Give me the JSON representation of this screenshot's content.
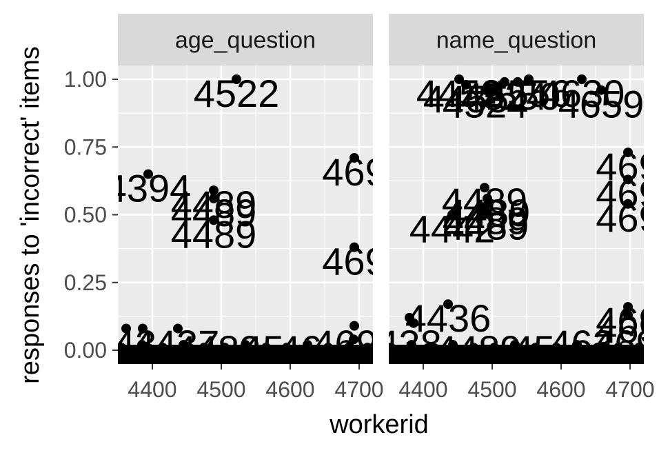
{
  "chart_data": {
    "type": "scatter",
    "xlabel": "workerid",
    "ylabel": "responses to 'incorrect' items",
    "xlim": [
      4350,
      4720
    ],
    "ylim": [
      0,
      1.0
    ],
    "x_ticks": [
      "4400",
      "4500",
      "4600",
      "4700"
    ],
    "y_ticks": [
      "0.00",
      "0.25",
      "0.50",
      "0.75",
      "1.00"
    ],
    "grid": true,
    "panels": [
      {
        "facet": "age_question",
        "points": [
          {
            "x": 4522,
            "y": 1.0,
            "label": "4522"
          },
          {
            "x": 4394,
            "y": 0.65,
            "label": "4394"
          },
          {
            "x": 4489,
            "y": 0.59,
            "label": "4489"
          },
          {
            "x": 4489,
            "y": 0.56,
            "label": "4489"
          },
          {
            "x": 4489,
            "y": 0.48,
            "label": "4489"
          },
          {
            "x": 4693,
            "y": 0.71,
            "label": "469"
          },
          {
            "x": 4693,
            "y": 0.38,
            "label": "469"
          },
          {
            "x": 4362,
            "y": 0.08,
            "label": ""
          },
          {
            "x": 4386,
            "y": 0.08,
            "label": ""
          },
          {
            "x": 4437,
            "y": 0.08,
            "label": ""
          },
          {
            "x": 4693,
            "y": 0.09,
            "label": ""
          },
          {
            "x": 4692,
            "y": 0.04,
            "label": ""
          },
          {
            "x": 4355,
            "y": 0.01,
            "label": ""
          },
          {
            "x": 4370,
            "y": 0.0,
            "label": ""
          },
          {
            "x": 4385,
            "y": 0.02,
            "label": ""
          },
          {
            "x": 4400,
            "y": 0.0,
            "label": ""
          },
          {
            "x": 4415,
            "y": 0.01,
            "label": ""
          },
          {
            "x": 4430,
            "y": 0.0,
            "label": ""
          },
          {
            "x": 4445,
            "y": 0.02,
            "label": ""
          },
          {
            "x": 4460,
            "y": 0.0,
            "label": ""
          },
          {
            "x": 4475,
            "y": 0.01,
            "label": ""
          },
          {
            "x": 4490,
            "y": 0.0,
            "label": ""
          },
          {
            "x": 4505,
            "y": 0.01,
            "label": ""
          },
          {
            "x": 4520,
            "y": 0.0,
            "label": ""
          },
          {
            "x": 4535,
            "y": 0.02,
            "label": ""
          },
          {
            "x": 4550,
            "y": 0.0,
            "label": ""
          },
          {
            "x": 4565,
            "y": 0.01,
            "label": ""
          },
          {
            "x": 4580,
            "y": 0.0,
            "label": ""
          },
          {
            "x": 4595,
            "y": 0.01,
            "label": ""
          },
          {
            "x": 4610,
            "y": 0.0,
            "label": ""
          },
          {
            "x": 4625,
            "y": 0.02,
            "label": ""
          },
          {
            "x": 4640,
            "y": 0.0,
            "label": ""
          },
          {
            "x": 4655,
            "y": 0.01,
            "label": ""
          },
          {
            "x": 4670,
            "y": 0.0,
            "label": ""
          },
          {
            "x": 4685,
            "y": 0.01,
            "label": ""
          },
          {
            "x": 4700,
            "y": 0.0,
            "label": ""
          },
          {
            "x": 4712,
            "y": 0.01,
            "label": ""
          }
        ],
        "clutter_labels": [
          {
            "x": 4375,
            "y": 0.02,
            "label": "43"
          },
          {
            "x": 4435,
            "y": 0.02,
            "label": "4437"
          },
          {
            "x": 4495,
            "y": 0.0,
            "label": "4489"
          },
          {
            "x": 4560,
            "y": 0.0,
            "label": "45"
          },
          {
            "x": 4615,
            "y": 0.0,
            "label": "46"
          },
          {
            "x": 4680,
            "y": 0.02,
            "label": "469"
          }
        ]
      },
      {
        "facet": "name_question",
        "points": [
          {
            "x": 4452,
            "y": 1.0,
            "label": "4452"
          },
          {
            "x": 4462,
            "y": 0.98,
            "label": "4455"
          },
          {
            "x": 4490,
            "y": 0.96,
            "label": "4524"
          },
          {
            "x": 4518,
            "y": 0.99,
            "label": "4524"
          },
          {
            "x": 4537,
            "y": 0.99,
            "label": "4550"
          },
          {
            "x": 4553,
            "y": 1.0,
            "label": "4556"
          },
          {
            "x": 4630,
            "y": 1.0,
            "label": "4630"
          },
          {
            "x": 4658,
            "y": 0.96,
            "label": "4659"
          },
          {
            "x": 4697,
            "y": 0.73,
            "label": "469"
          },
          {
            "x": 4697,
            "y": 0.63,
            "label": "469"
          },
          {
            "x": 4697,
            "y": 0.54,
            "label": "469"
          },
          {
            "x": 4489,
            "y": 0.6,
            "label": "4489"
          },
          {
            "x": 4493,
            "y": 0.56,
            "label": "4489"
          },
          {
            "x": 4490,
            "y": 0.53,
            "label": "4489"
          },
          {
            "x": 4491,
            "y": 0.51,
            "label": "4489"
          },
          {
            "x": 4442,
            "y": 0.5,
            "label": "4442"
          },
          {
            "x": 4436,
            "y": 0.17,
            "label": "4436"
          },
          {
            "x": 4697,
            "y": 0.16,
            "label": "469"
          },
          {
            "x": 4697,
            "y": 0.13,
            "label": "469"
          },
          {
            "x": 4380,
            "y": 0.12,
            "label": ""
          },
          {
            "x": 4386,
            "y": 0.1,
            "label": ""
          },
          {
            "x": 4353,
            "y": 0.01,
            "label": ""
          },
          {
            "x": 4368,
            "y": 0.0,
            "label": ""
          },
          {
            "x": 4383,
            "y": 0.02,
            "label": ""
          },
          {
            "x": 4398,
            "y": 0.0,
            "label": ""
          },
          {
            "x": 4413,
            "y": 0.01,
            "label": ""
          },
          {
            "x": 4428,
            "y": 0.0,
            "label": ""
          },
          {
            "x": 4443,
            "y": 0.02,
            "label": ""
          },
          {
            "x": 4458,
            "y": 0.0,
            "label": ""
          },
          {
            "x": 4473,
            "y": 0.01,
            "label": ""
          },
          {
            "x": 4488,
            "y": 0.0,
            "label": ""
          },
          {
            "x": 4503,
            "y": 0.01,
            "label": ""
          },
          {
            "x": 4518,
            "y": 0.0,
            "label": ""
          },
          {
            "x": 4533,
            "y": 0.02,
            "label": ""
          },
          {
            "x": 4548,
            "y": 0.0,
            "label": ""
          },
          {
            "x": 4563,
            "y": 0.01,
            "label": ""
          },
          {
            "x": 4578,
            "y": 0.0,
            "label": ""
          },
          {
            "x": 4593,
            "y": 0.01,
            "label": ""
          },
          {
            "x": 4608,
            "y": 0.0,
            "label": ""
          },
          {
            "x": 4623,
            "y": 0.02,
            "label": ""
          },
          {
            "x": 4638,
            "y": 0.0,
            "label": ""
          },
          {
            "x": 4653,
            "y": 0.01,
            "label": ""
          },
          {
            "x": 4668,
            "y": 0.0,
            "label": ""
          },
          {
            "x": 4683,
            "y": 0.01,
            "label": ""
          },
          {
            "x": 4698,
            "y": 0.0,
            "label": ""
          },
          {
            "x": 4713,
            "y": 0.01,
            "label": ""
          }
        ],
        "clutter_labels": [
          {
            "x": 4380,
            "y": 0.02,
            "label": "438"
          },
          {
            "x": 4480,
            "y": 0.0,
            "label": "4489"
          },
          {
            "x": 4560,
            "y": 0.0,
            "label": "45"
          },
          {
            "x": 4630,
            "y": 0.02,
            "label": "463"
          },
          {
            "x": 4693,
            "y": 0.02,
            "label": "469"
          }
        ]
      }
    ]
  }
}
